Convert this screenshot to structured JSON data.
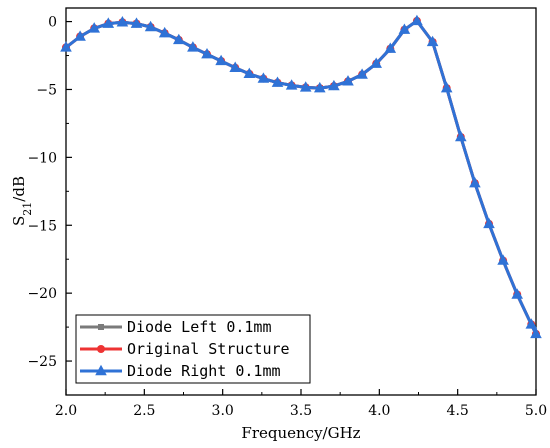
{
  "chart_data": {
    "type": "line",
    "xlabel": "Frequency/GHz",
    "ylabel_main": "S",
    "ylabel_sub": "21",
    "ylabel_unit": "/dB",
    "xlim": [
      2.0,
      5.0
    ],
    "ylim": [
      -27.5,
      1.0
    ],
    "xticks": [
      2.0,
      2.5,
      3.0,
      3.5,
      4.0,
      4.5,
      5.0
    ],
    "xtick_labels": [
      "2.0",
      "2.5",
      "3.0",
      "3.5",
      "4.0",
      "4.5",
      "5.0"
    ],
    "yticks": [
      0,
      -5,
      -10,
      -15,
      -20,
      -25
    ],
    "ytick_labels": [
      "0",
      "−5",
      "−10",
      "−15",
      "−20",
      "−25"
    ],
    "grid": false,
    "legend_position": "bottom-left",
    "x": [
      2.0,
      2.09,
      2.18,
      2.27,
      2.36,
      2.45,
      2.54,
      2.63,
      2.72,
      2.81,
      2.9,
      2.99,
      3.08,
      3.17,
      3.26,
      3.35,
      3.44,
      3.53,
      3.62,
      3.71,
      3.8,
      3.89,
      3.98,
      4.07,
      4.16,
      4.24,
      4.34,
      4.43,
      4.52,
      4.61,
      4.7,
      4.79,
      4.88,
      4.97,
      5.0
    ],
    "series": [
      {
        "name": "Diode Left 0.1mm",
        "color": "#7a7a7a",
        "marker": "square",
        "values": [
          -1.9,
          -1.1,
          -0.5,
          -0.15,
          -0.05,
          -0.15,
          -0.4,
          -0.85,
          -1.35,
          -1.9,
          -2.4,
          -2.9,
          -3.4,
          -3.85,
          -4.2,
          -4.5,
          -4.7,
          -4.85,
          -4.9,
          -4.75,
          -4.4,
          -3.9,
          -3.1,
          -2.0,
          -0.6,
          0.05,
          -1.5,
          -4.9,
          -8.5,
          -11.9,
          -14.9,
          -17.6,
          -20.1,
          -22.3,
          -23.0
        ]
      },
      {
        "name": "Original Structure",
        "color": "#ee3333",
        "marker": "circle",
        "values": [
          -1.9,
          -1.1,
          -0.5,
          -0.15,
          -0.05,
          -0.15,
          -0.4,
          -0.85,
          -1.35,
          -1.9,
          -2.4,
          -2.9,
          -3.4,
          -3.85,
          -4.2,
          -4.5,
          -4.7,
          -4.85,
          -4.9,
          -4.75,
          -4.4,
          -3.9,
          -3.1,
          -2.0,
          -0.6,
          0.05,
          -1.5,
          -4.9,
          -8.5,
          -11.9,
          -14.9,
          -17.6,
          -20.1,
          -22.3,
          -23.0
        ]
      },
      {
        "name": "Diode Right 0.1mm",
        "color": "#2f72d6",
        "marker": "triangle",
        "values": [
          -1.9,
          -1.1,
          -0.5,
          -0.15,
          -0.05,
          -0.15,
          -0.4,
          -0.85,
          -1.35,
          -1.9,
          -2.4,
          -2.9,
          -3.4,
          -3.85,
          -4.2,
          -4.5,
          -4.7,
          -4.85,
          -4.9,
          -4.75,
          -4.4,
          -3.9,
          -3.1,
          -2.0,
          -0.6,
          0.05,
          -1.5,
          -4.9,
          -8.5,
          -11.9,
          -14.9,
          -17.6,
          -20.1,
          -22.3,
          -23.0
        ]
      }
    ]
  }
}
